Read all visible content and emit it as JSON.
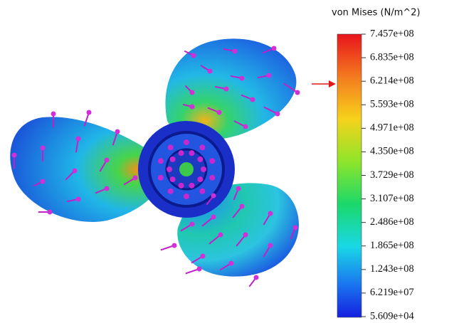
{
  "legend": {
    "title": "von Mises (N/m^2)",
    "ticks": [
      "7.457e+08",
      "6.835e+08",
      "6.214e+08",
      "5.593e+08",
      "4.971e+08",
      "4.350e+08",
      "3.729e+08",
      "3.107e+08",
      "2.486e+08",
      "1.865e+08",
      "1.243e+08",
      "6.219e+07",
      "5.609e+04"
    ]
  }
}
